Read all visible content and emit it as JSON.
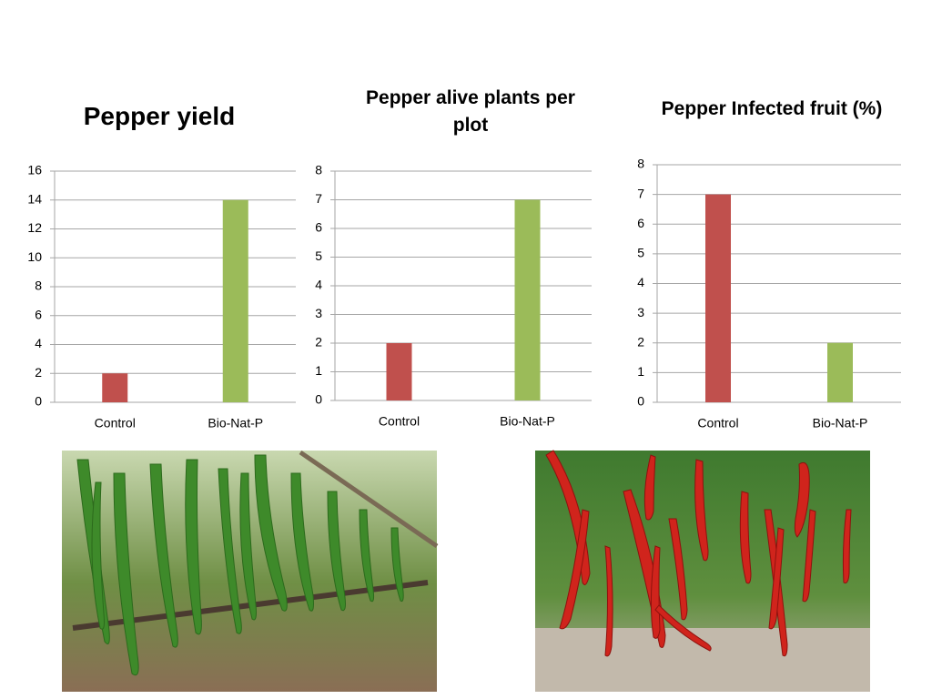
{
  "chart_data": [
    {
      "type": "bar",
      "title": "Pepper yield",
      "categories": [
        "Control",
        "Bio-Nat-P"
      ],
      "values": [
        2,
        14
      ],
      "colors": [
        "#c0504d",
        "#9bbb59"
      ],
      "ylim": [
        0,
        16
      ],
      "yticks": [
        0,
        2,
        4,
        6,
        8,
        10,
        12,
        14,
        16
      ],
      "grid": true
    },
    {
      "type": "bar",
      "title": "Pepper alive plants per plot",
      "categories": [
        "Control",
        "Bio-Nat-P"
      ],
      "values": [
        2,
        7
      ],
      "colors": [
        "#c0504d",
        "#9bbb59"
      ],
      "ylim": [
        0,
        8
      ],
      "yticks": [
        0,
        1,
        2,
        3,
        4,
        5,
        6,
        7,
        8
      ],
      "grid": true
    },
    {
      "type": "bar",
      "title": "Pepper Infected fruit (%)",
      "categories": [
        "Control",
        "Bio-Nat-P"
      ],
      "values": [
        7,
        2
      ],
      "colors": [
        "#c0504d",
        "#9bbb59"
      ],
      "ylim": [
        0,
        8
      ],
      "yticks": [
        0,
        1,
        2,
        3,
        4,
        5,
        6,
        7,
        8
      ],
      "grid": true
    }
  ]
}
